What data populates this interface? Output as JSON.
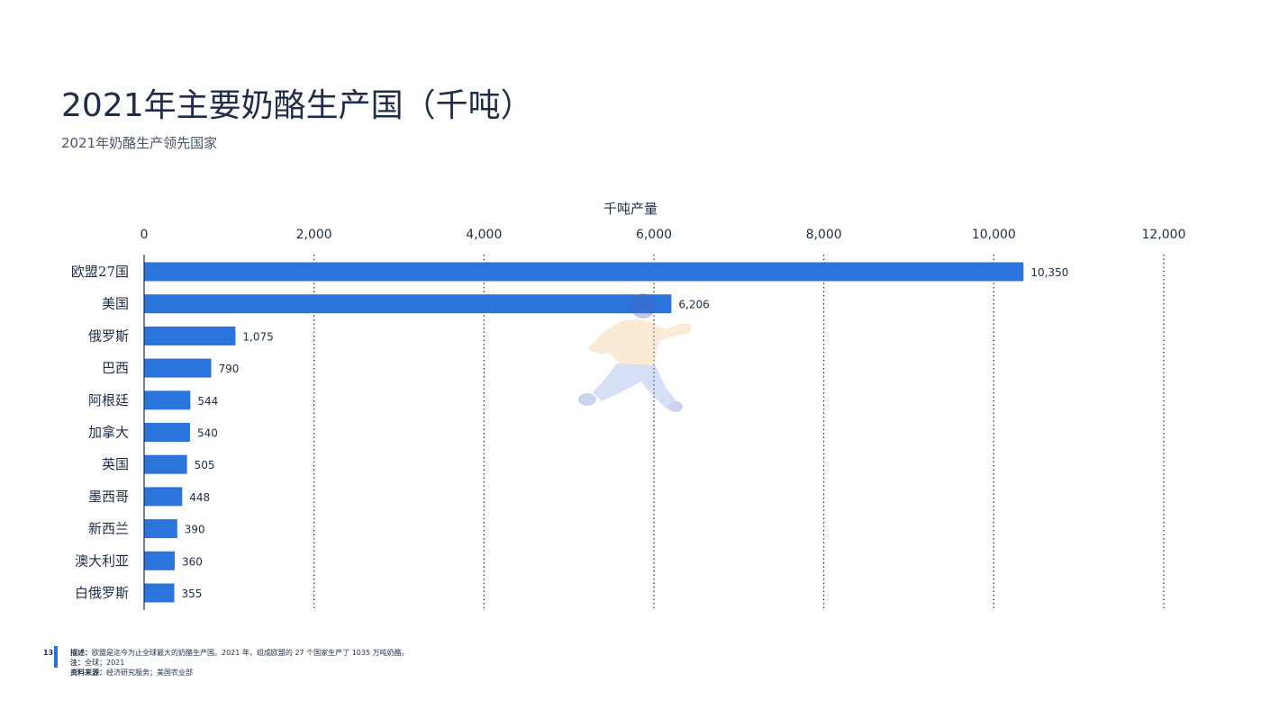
{
  "page": {
    "title": "2021年主要奶酪生产国（千吨）",
    "subtitle": "2021年奶酪生产领先国家",
    "page_number": "13",
    "footer": {
      "desc_label": "描述：",
      "desc_text": "欧盟是迄今为止全球最大的奶酪生产国。2021 年，组成欧盟的 27 个国家生产了 1035 万吨奶酪。",
      "note_label": "注：",
      "note_text": "全球；2021",
      "source_label": "资料来源：",
      "source_text": "经济研究服务；美国农业部"
    }
  },
  "chart_data": {
    "type": "bar",
    "orientation": "horizontal",
    "xlabel": "千吨产量",
    "xlim": [
      0,
      12000
    ],
    "xticks": [
      "0",
      "2,000",
      "4,000",
      "6,000",
      "8,000",
      "10,000",
      "12,000"
    ],
    "xtick_values": [
      0,
      2000,
      4000,
      6000,
      8000,
      10000,
      12000
    ],
    "grid": "vertical dotted",
    "categories": [
      "欧盟27国",
      "美国",
      "俄罗斯",
      "巴西",
      "阿根廷",
      "加拿大",
      "英国",
      "墨西哥",
      "新西兰",
      "澳大利亚",
      "白俄罗斯"
    ],
    "values": [
      10350,
      6206,
      1075,
      790,
      544,
      540,
      505,
      448,
      390,
      360,
      355
    ],
    "value_labels": [
      "10,350",
      "6,206",
      "1,075",
      "790",
      "544",
      "540",
      "505",
      "448",
      "390",
      "360",
      "355"
    ],
    "bar_color": "#2a74dc"
  }
}
